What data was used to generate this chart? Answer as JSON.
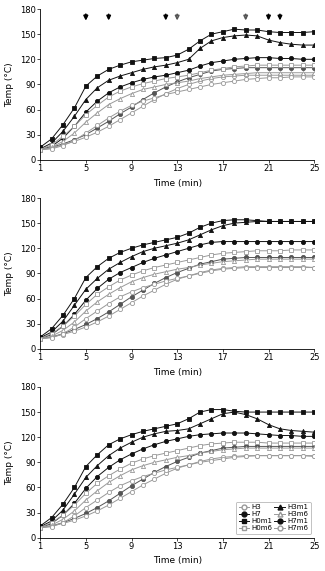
{
  "time": [
    1,
    2,
    3,
    4,
    5,
    6,
    7,
    8,
    9,
    10,
    11,
    12,
    13,
    14,
    15,
    16,
    17,
    18,
    19,
    20,
    21,
    22,
    23,
    24,
    25
  ],
  "panel1": {
    "H0m1": [
      15,
      25,
      42,
      62,
      88,
      100,
      108,
      113,
      117,
      119,
      121,
      122,
      125,
      132,
      142,
      150,
      153,
      156,
      155,
      155,
      153,
      152,
      152,
      152,
      153
    ],
    "H3m1": [
      13,
      20,
      34,
      52,
      72,
      86,
      95,
      100,
      104,
      108,
      111,
      113,
      116,
      120,
      133,
      142,
      146,
      148,
      149,
      148,
      143,
      140,
      138,
      137,
      137
    ],
    "H7m1": [
      12,
      16,
      26,
      40,
      57,
      70,
      80,
      87,
      92,
      96,
      99,
      101,
      104,
      107,
      112,
      116,
      118,
      120,
      121,
      122,
      122,
      121,
      121,
      120,
      120
    ],
    "H3": [
      12,
      14,
      18,
      22,
      27,
      33,
      40,
      48,
      56,
      64,
      72,
      79,
      85,
      90,
      94,
      97,
      99,
      100,
      101,
      101,
      101,
      101,
      101,
      101,
      101
    ],
    "H7": [
      12,
      15,
      19,
      24,
      30,
      38,
      46,
      55,
      63,
      72,
      80,
      87,
      93,
      98,
      102,
      106,
      108,
      109,
      110,
      110,
      110,
      110,
      110,
      110,
      110
    ],
    "H0m6": [
      12,
      18,
      28,
      40,
      54,
      65,
      75,
      82,
      87,
      91,
      94,
      97,
      99,
      101,
      104,
      107,
      109,
      111,
      112,
      113,
      113,
      113,
      113,
      113,
      113
    ],
    "H3m6": [
      12,
      15,
      22,
      32,
      45,
      56,
      66,
      73,
      79,
      84,
      87,
      90,
      92,
      94,
      97,
      99,
      101,
      102,
      103,
      104,
      104,
      104,
      104,
      104,
      104
    ],
    "H7m6": [
      12,
      13,
      17,
      23,
      32,
      41,
      50,
      58,
      65,
      70,
      74,
      78,
      81,
      84,
      87,
      90,
      92,
      94,
      96,
      97,
      98,
      98,
      99,
      99,
      99
    ]
  },
  "panel2": {
    "H0m1": [
      14,
      24,
      40,
      60,
      85,
      98,
      108,
      115,
      120,
      124,
      127,
      130,
      133,
      138,
      145,
      150,
      153,
      154,
      154,
      153,
      152,
      152,
      152,
      152,
      152
    ],
    "H3m1": [
      13,
      20,
      33,
      52,
      71,
      84,
      95,
      103,
      110,
      116,
      120,
      123,
      126,
      130,
      136,
      142,
      147,
      150,
      151,
      152,
      152,
      152,
      152,
      152,
      152
    ],
    "H7m1": [
      12,
      17,
      27,
      41,
      58,
      72,
      83,
      91,
      97,
      103,
      108,
      112,
      116,
      120,
      124,
      127,
      128,
      128,
      128,
      128,
      128,
      128,
      128,
      128,
      128
    ],
    "H3": [
      12,
      14,
      17,
      21,
      26,
      32,
      39,
      47,
      55,
      63,
      70,
      77,
      83,
      87,
      91,
      94,
      96,
      97,
      98,
      98,
      98,
      98,
      98,
      98,
      97
    ],
    "H7": [
      12,
      14,
      18,
      23,
      29,
      36,
      44,
      53,
      62,
      70,
      78,
      85,
      91,
      96,
      101,
      104,
      107,
      108,
      109,
      109,
      109,
      109,
      109,
      109,
      109
    ],
    "H0m6": [
      12,
      18,
      27,
      39,
      53,
      65,
      74,
      82,
      88,
      93,
      97,
      100,
      103,
      106,
      109,
      112,
      114,
      115,
      116,
      117,
      117,
      117,
      118,
      118,
      118
    ],
    "H3m6": [
      12,
      15,
      22,
      32,
      45,
      56,
      65,
      73,
      80,
      85,
      89,
      92,
      95,
      97,
      100,
      102,
      104,
      105,
      106,
      107,
      107,
      107,
      107,
      107,
      107
    ],
    "H7m6": [
      12,
      13,
      18,
      26,
      36,
      45,
      54,
      62,
      68,
      73,
      77,
      81,
      84,
      87,
      90,
      93,
      95,
      96,
      97,
      97,
      97,
      97,
      97,
      97,
      97
    ]
  },
  "panel3": {
    "H0m1": [
      14,
      24,
      40,
      60,
      85,
      99,
      111,
      118,
      123,
      127,
      130,
      133,
      136,
      142,
      150,
      153,
      153,
      151,
      150,
      150,
      150,
      150,
      150,
      150,
      150
    ],
    "H3m1": [
      13,
      20,
      33,
      52,
      72,
      86,
      98,
      107,
      114,
      120,
      124,
      127,
      128,
      130,
      136,
      142,
      148,
      150,
      147,
      142,
      135,
      130,
      128,
      127,
      126
    ],
    "H7m1": [
      12,
      17,
      27,
      41,
      59,
      73,
      84,
      93,
      100,
      106,
      111,
      115,
      118,
      121,
      123,
      124,
      125,
      125,
      125,
      124,
      123,
      122,
      122,
      121,
      121
    ],
    "H3": [
      12,
      14,
      17,
      21,
      26,
      32,
      39,
      47,
      55,
      63,
      70,
      77,
      83,
      87,
      91,
      94,
      96,
      97,
      98,
      98,
      98,
      98,
      98,
      98,
      97
    ],
    "H7": [
      12,
      14,
      18,
      23,
      29,
      36,
      44,
      53,
      62,
      70,
      78,
      85,
      91,
      96,
      101,
      104,
      107,
      108,
      109,
      109,
      109,
      109,
      109,
      109,
      109
    ],
    "H0m6": [
      12,
      18,
      27,
      39,
      53,
      65,
      74,
      82,
      89,
      94,
      98,
      101,
      104,
      107,
      110,
      112,
      113,
      114,
      114,
      114,
      113,
      113,
      113,
      113,
      113
    ],
    "H3m6": [
      12,
      15,
      22,
      32,
      45,
      56,
      66,
      74,
      81,
      86,
      90,
      93,
      96,
      98,
      101,
      103,
      105,
      106,
      107,
      107,
      107,
      107,
      107,
      107,
      107
    ],
    "H7m6": [
      12,
      13,
      18,
      26,
      36,
      45,
      54,
      62,
      68,
      73,
      77,
      81,
      84,
      87,
      90,
      92,
      94,
      96,
      97,
      98,
      98,
      98,
      98,
      98,
      98
    ]
  },
  "arrows_open": [
    5,
    13,
    19
  ],
  "arrows_filled": [
    5,
    7,
    12,
    21,
    22
  ],
  "series_styles": {
    "H3": {
      "color": "#999999",
      "marker": "o",
      "filled": false
    },
    "H7": {
      "color": "#555555",
      "marker": "o",
      "filled": true
    },
    "H0m1": {
      "color": "#111111",
      "marker": "s",
      "filled": true
    },
    "H3m1": {
      "color": "#111111",
      "marker": "^",
      "filled": true
    },
    "H7m1": {
      "color": "#111111",
      "marker": "o",
      "filled": true
    },
    "H0m6": {
      "color": "#999999",
      "marker": "s",
      "filled": false
    },
    "H3m6": {
      "color": "#999999",
      "marker": "^",
      "filled": false
    },
    "H7m6": {
      "color": "#999999",
      "marker": "o",
      "filled": false
    }
  },
  "series_order": [
    "H0m1",
    "H3m1",
    "H7m1",
    "H7",
    "H3",
    "H0m6",
    "H3m6",
    "H7m6"
  ],
  "ylim": [
    0,
    180
  ],
  "yticks": [
    0,
    30,
    60,
    90,
    120,
    150,
    180
  ],
  "xlim": [
    1,
    25
  ],
  "xticks": [
    1,
    5,
    9,
    13,
    17,
    21,
    25
  ],
  "xlabel": "Time (min)",
  "ylabel": "Temp (°C)",
  "background_color": "#ffffff",
  "legend_labels": [
    "H3",
    "H7",
    "H0m1",
    "H0m6",
    "H3m1",
    "H3m6",
    "H7m1",
    "H7m6"
  ]
}
